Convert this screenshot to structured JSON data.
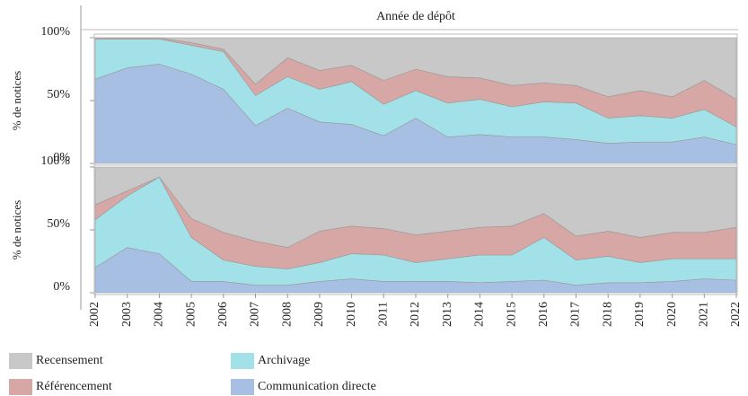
{
  "chart_data": [
    {
      "type": "stacked-area",
      "title": "Année de dépôt",
      "ylabel": "% de notices",
      "categories": [
        "2002",
        "2003",
        "2004",
        "2005",
        "2006",
        "2007",
        "2008",
        "2009",
        "2010",
        "2011",
        "2012",
        "2013",
        "2014",
        "2015",
        "2016",
        "2017",
        "2018",
        "2019",
        "2020",
        "2021",
        "2022"
      ],
      "ylim": [
        0,
        100
      ],
      "yticks": [
        {
          "value": 0,
          "label": "0%"
        },
        {
          "value": 50,
          "label": "50%"
        },
        {
          "value": 100,
          "label": "100%"
        }
      ],
      "series": [
        {
          "name": "Recensement",
          "color": "#c8c8c8",
          "values": [
            0,
            0,
            0,
            4,
            9,
            37,
            16,
            26,
            22,
            34,
            25,
            31,
            32,
            38,
            36,
            38,
            47,
            42,
            47,
            34,
            49
          ]
        },
        {
          "name": "Référencement",
          "color": "#d6a7a4",
          "values": [
            1,
            1,
            1,
            2,
            2,
            9,
            15,
            15,
            13,
            19,
            17,
            21,
            17,
            17,
            15,
            14,
            17,
            20,
            17,
            23,
            22
          ]
        },
        {
          "name": "Archivage",
          "color": "#a3e1e9",
          "values": [
            32,
            23,
            20,
            23,
            30,
            24,
            25,
            26,
            34,
            25,
            22,
            27,
            28,
            24,
            28,
            29,
            20,
            21,
            19,
            22,
            14
          ]
        },
        {
          "name": "Communication directe",
          "color": "#a6bfe2",
          "values": [
            67,
            76,
            79,
            71,
            59,
            30,
            44,
            33,
            31,
            22,
            36,
            21,
            23,
            21,
            21,
            19,
            16,
            17,
            17,
            21,
            15
          ]
        }
      ]
    },
    {
      "type": "stacked-area",
      "ylabel": "% de notices",
      "categories": [
        "2002",
        "2003",
        "2004",
        "2005",
        "2006",
        "2007",
        "2008",
        "2009",
        "2010",
        "2011",
        "2012",
        "2013",
        "2014",
        "2015",
        "2016",
        "2017",
        "2018",
        "2019",
        "2020",
        "2021",
        "2022"
      ],
      "ylim": [
        0,
        100
      ],
      "yticks": [
        {
          "value": 0,
          "label": "0%"
        },
        {
          "value": 50,
          "label": "50%"
        },
        {
          "value": 100,
          "label": "100%"
        }
      ],
      "series": [
        {
          "name": "Recensement",
          "color": "#c8c8c8",
          "values": [
            30,
            19,
            8,
            41,
            52,
            59,
            64,
            51,
            47,
            49,
            54,
            51,
            48,
            47,
            37,
            55,
            51,
            56,
            52,
            52,
            48
          ]
        },
        {
          "name": "Référencement",
          "color": "#d6a7a4",
          "values": [
            12,
            4,
            0,
            15,
            22,
            20,
            17,
            25,
            22,
            21,
            22,
            22,
            22,
            23,
            19,
            19,
            20,
            20,
            21,
            21,
            25
          ]
        },
        {
          "name": "Archivage",
          "color": "#a3e1e9",
          "values": [
            38,
            41,
            61,
            35,
            17,
            15,
            13,
            15,
            20,
            21,
            15,
            18,
            22,
            21,
            34,
            20,
            21,
            16,
            18,
            16,
            17
          ]
        },
        {
          "name": "Communication directe",
          "color": "#a6bfe2",
          "values": [
            20,
            36,
            31,
            9,
            9,
            6,
            6,
            9,
            11,
            9,
            9,
            9,
            8,
            9,
            10,
            6,
            8,
            8,
            9,
            11,
            10
          ]
        }
      ]
    }
  ]
}
